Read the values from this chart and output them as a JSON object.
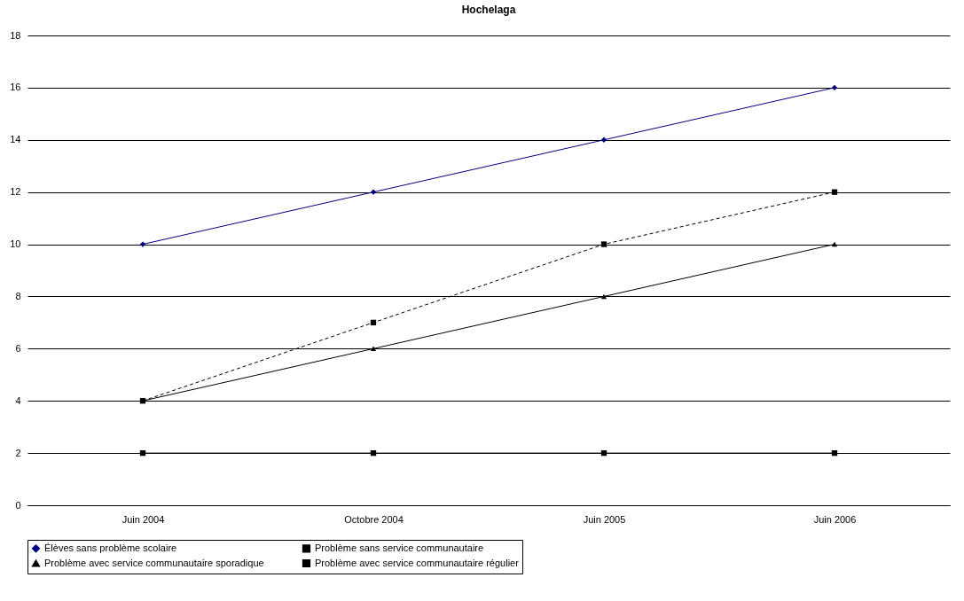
{
  "chart_data": {
    "type": "line",
    "title": "Hochelaga",
    "categories": [
      "Juin 2004",
      "Octobre 2004",
      "Juin 2005",
      "Juin 2006"
    ],
    "series": [
      {
        "name": "Élèves sans problème scolaire",
        "color": "#000080",
        "marker": "diamond",
        "line_style": "solid",
        "values": [
          10,
          12,
          14,
          16
        ]
      },
      {
        "name": "Problème sans service communautaire",
        "color": "#000000",
        "marker": "square",
        "line_style": "solid",
        "values": [
          2,
          2,
          2,
          2
        ]
      },
      {
        "name": "Problème avec service communautaire sporadique",
        "color": "#000000",
        "marker": "triangle",
        "line_style": "solid",
        "values": [
          4,
          6,
          8,
          10
        ]
      },
      {
        "name": "Problème avec service communautaire régulier",
        "color": "#000000",
        "marker": "square",
        "line_style": "dashed",
        "values": [
          4,
          7,
          10,
          12
        ]
      }
    ],
    "ylim": [
      0,
      18
    ],
    "yticks": [
      0,
      2,
      4,
      6,
      8,
      10,
      12,
      14,
      16,
      18
    ],
    "grid": "y",
    "legend": "bottom"
  }
}
